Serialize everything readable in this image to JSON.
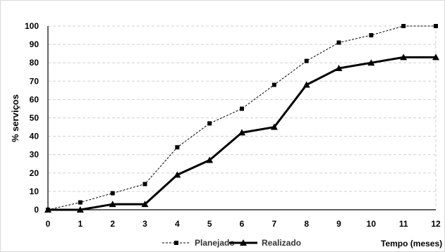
{
  "chart_data": {
    "type": "line",
    "x": [
      0,
      1,
      2,
      3,
      4,
      5,
      6,
      7,
      8,
      9,
      10,
      11,
      12
    ],
    "xlim": [
      0,
      12
    ],
    "ylim": [
      0,
      100
    ],
    "yticks": [
      0,
      10,
      20,
      30,
      40,
      50,
      60,
      70,
      80,
      90,
      100
    ],
    "ylabel": "% serviços",
    "xlabel": "Tempo (meses)",
    "grid": true,
    "legend": "bottom-center",
    "series": [
      {
        "name": "Planejado",
        "values": [
          0,
          4,
          9,
          14,
          34,
          47,
          55,
          68,
          81,
          91,
          95,
          100,
          100
        ],
        "color": "#000000",
        "line_style": "dashed",
        "marker": "square"
      },
      {
        "name": "Realizado",
        "values": [
          0,
          0,
          3,
          3,
          19,
          27,
          42,
          45,
          68,
          77,
          80,
          83,
          83
        ],
        "color": "#000000",
        "line_style": "solid",
        "marker": "triangle"
      }
    ]
  }
}
